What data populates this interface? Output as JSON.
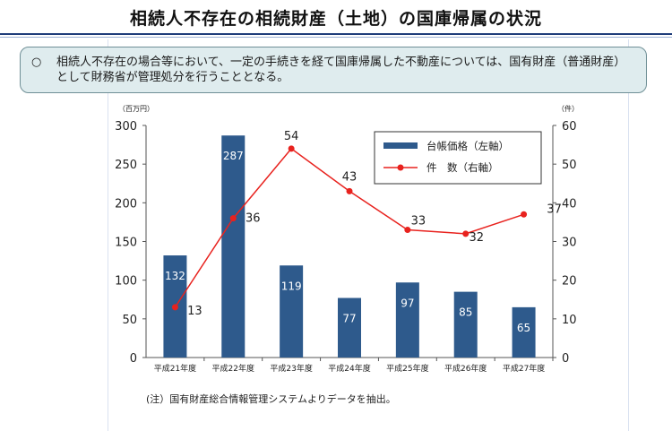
{
  "header": {
    "title": "相続人不存在の相続財産（土地）の国庫帰属の状況"
  },
  "note": {
    "mark": "○",
    "text": "相続人不存在の場合等において、一定の手続きを経て国庫帰属した不動産については、国有財産（普通財産）として財務省が管理処分を行うこととなる。"
  },
  "footnote": "(注）国有財産総合情報管理システムよりデータを抽出。",
  "colors": {
    "bar": "#2e5a8c",
    "line": "#e8221e",
    "note_bg": "#dfecee",
    "title_rule": "#1f3d7a"
  },
  "chart_data": {
    "type": "bar",
    "categories": [
      "平成21年度",
      "平成22年度",
      "平成23年度",
      "平成24年度",
      "平成25年度",
      "平成26年度",
      "平成27年度"
    ],
    "series": [
      {
        "name": "台帳価格（左軸）",
        "type": "bar",
        "axis": "left",
        "values": [
          132,
          287,
          119,
          77,
          97,
          85,
          65
        ],
        "labels": [
          "132",
          "287",
          "119",
          "77",
          "97",
          "85",
          "65"
        ]
      },
      {
        "name": "件　数（右軸）",
        "type": "line",
        "axis": "right",
        "values": [
          13,
          36,
          54,
          43,
          33,
          32,
          37
        ],
        "labels": [
          "13",
          "36",
          "54",
          "43",
          "33",
          "32",
          "37"
        ]
      }
    ],
    "y_left": {
      "unit": "（百万円）",
      "range": [
        0,
        300
      ],
      "ticks": [
        "0",
        "50",
        "100",
        "150",
        "200",
        "250",
        "300"
      ]
    },
    "y_right": {
      "unit": "（件）",
      "range": [
        0,
        60
      ],
      "ticks": [
        "0",
        "10",
        "20",
        "30",
        "40",
        "50",
        "60"
      ]
    },
    "legend_position": "top-right",
    "grid": false
  }
}
